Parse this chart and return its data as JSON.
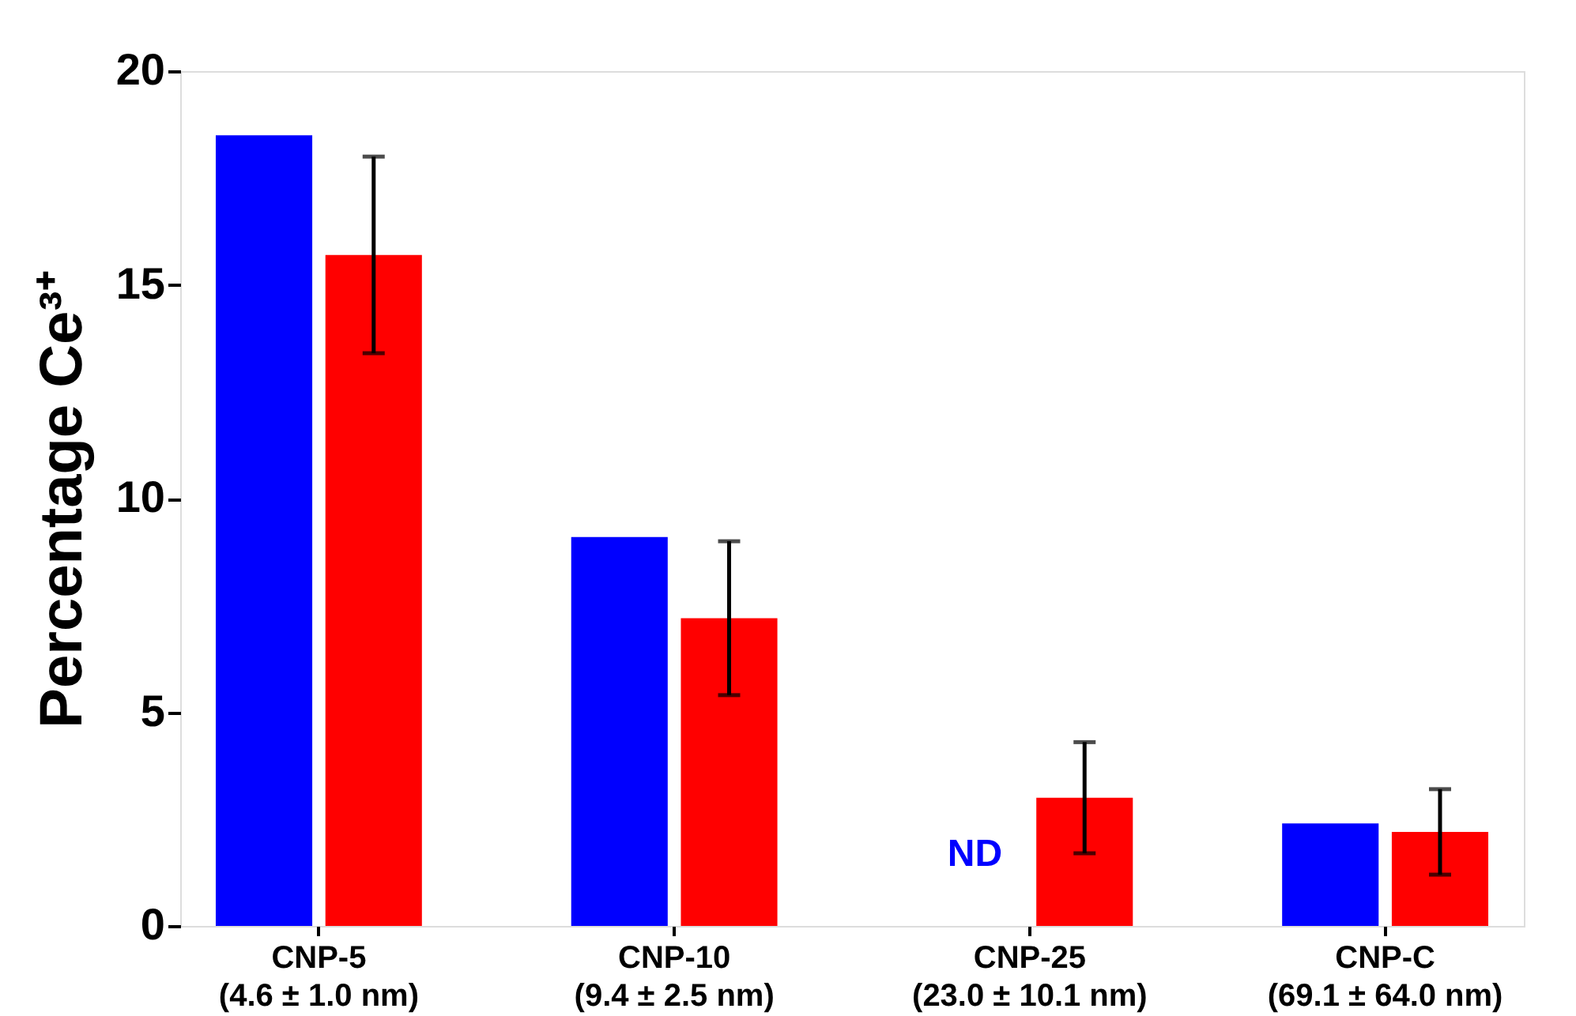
{
  "chart_data": {
    "type": "bar",
    "ylabel": "Percentage Ce³⁺",
    "categories": [
      "CNP-5\n(4.6 ± 1.0 nm)",
      "CNP-10\n(9.4 ± 2.5 nm)",
      "CNP-25\n(23.0 ± 10.1 nm)",
      "CNP-C\n(69.1 ± 64.0 nm)"
    ],
    "series": [
      {
        "color": "#0000ff",
        "values": [
          18.5,
          9.1,
          null,
          2.4
        ]
      },
      {
        "color": "#ff0000",
        "values": [
          15.7,
          7.2,
          3.0,
          2.2
        ],
        "errors": [
          2.3,
          1.8,
          1.3,
          1.0
        ]
      }
    ],
    "annotations": [
      "ND"
    ],
    "ylim": [
      0,
      20
    ],
    "yticks": [
      0,
      5,
      10,
      15,
      20
    ],
    "grid": false,
    "legend": false
  }
}
